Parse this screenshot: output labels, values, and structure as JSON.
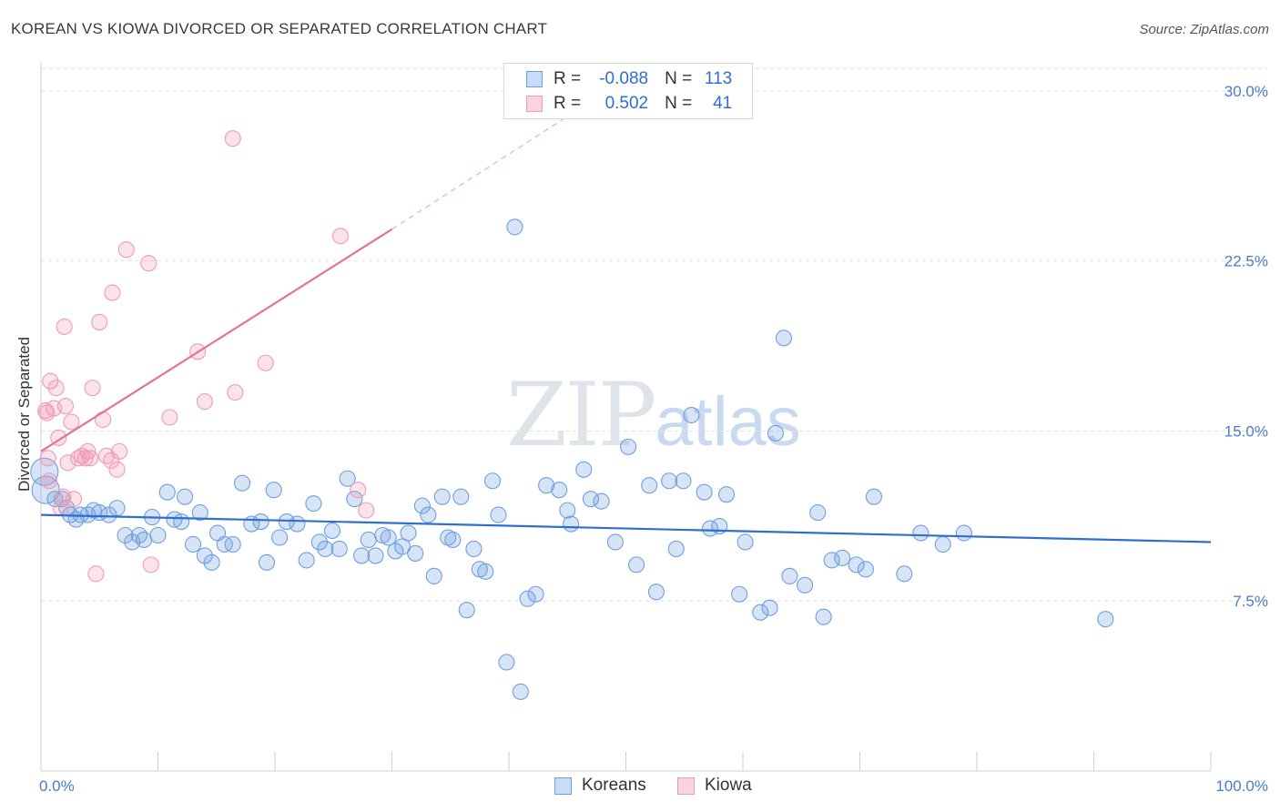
{
  "title": "KOREAN VS KIOWA DIVORCED OR SEPARATED CORRELATION CHART",
  "source": "Source: ZipAtlas.com",
  "watermark": {
    "zip": "ZIP",
    "atlas": "atlas"
  },
  "legend": {
    "rows": [
      {
        "r_label": "R =",
        "r_value": "-0.088",
        "n_label": "N =",
        "n_value": "113",
        "color": "#6f9fe0"
      },
      {
        "r_label": "R =",
        "r_value": "0.502",
        "n_label": "N =",
        "n_value": "41",
        "color": "#ef9bb5"
      }
    ],
    "bottom": [
      {
        "label": "Koreans"
      },
      {
        "label": "Kiowa"
      }
    ]
  },
  "chart_data": {
    "type": "scatter",
    "title": "KOREAN VS KIOWA DIVORCED OR SEPARATED CORRELATION CHART",
    "xlabel": "",
    "ylabel": "Divorced or Separated",
    "xlim": [
      0,
      100
    ],
    "ylim": [
      0,
      31
    ],
    "x_tick_labels": [
      "0.0%",
      "100.0%"
    ],
    "y_ticks": [
      7.5,
      15.0,
      22.5,
      30.0
    ],
    "y_tick_labels": [
      "7.5%",
      "15.0%",
      "22.5%",
      "30.0%"
    ],
    "series": [
      {
        "name": "Koreans",
        "color": "#6f9fe0",
        "trend": {
          "x": [
            0,
            100
          ],
          "y": [
            11.3,
            10.1
          ]
        },
        "points": [
          [
            0.3,
            13.2
          ],
          [
            0.4,
            12.4
          ],
          [
            1.2,
            12.0
          ],
          [
            1.8,
            12.0
          ],
          [
            2.2,
            11.6
          ],
          [
            2.5,
            11.3
          ],
          [
            3.0,
            11.1
          ],
          [
            3.4,
            11.3
          ],
          [
            4.0,
            11.3
          ],
          [
            4.5,
            11.5
          ],
          [
            5.0,
            11.4
          ],
          [
            5.8,
            11.3
          ],
          [
            6.5,
            11.6
          ],
          [
            7.2,
            10.4
          ],
          [
            7.8,
            10.1
          ],
          [
            8.4,
            10.4
          ],
          [
            8.8,
            10.2
          ],
          [
            9.5,
            11.2
          ],
          [
            10.0,
            10.4
          ],
          [
            10.8,
            12.3
          ],
          [
            11.4,
            11.1
          ],
          [
            12.0,
            11.0
          ],
          [
            12.3,
            12.1
          ],
          [
            13.0,
            10.0
          ],
          [
            13.6,
            11.4
          ],
          [
            14.0,
            9.5
          ],
          [
            14.6,
            9.2
          ],
          [
            15.1,
            10.5
          ],
          [
            15.7,
            10.0
          ],
          [
            16.4,
            10.0
          ],
          [
            17.2,
            12.7
          ],
          [
            18.0,
            10.9
          ],
          [
            18.8,
            11.0
          ],
          [
            19.3,
            9.2
          ],
          [
            19.9,
            12.4
          ],
          [
            20.4,
            10.3
          ],
          [
            21.0,
            11.0
          ],
          [
            21.9,
            10.9
          ],
          [
            22.7,
            9.3
          ],
          [
            23.3,
            11.8
          ],
          [
            23.8,
            10.1
          ],
          [
            24.3,
            9.8
          ],
          [
            24.9,
            10.6
          ],
          [
            25.5,
            9.8
          ],
          [
            26.2,
            12.9
          ],
          [
            26.8,
            12.0
          ],
          [
            27.4,
            9.5
          ],
          [
            28.0,
            10.2
          ],
          [
            28.6,
            9.5
          ],
          [
            29.2,
            10.4
          ],
          [
            29.7,
            10.3
          ],
          [
            30.3,
            9.7
          ],
          [
            30.9,
            9.9
          ],
          [
            31.4,
            10.5
          ],
          [
            32.0,
            9.6
          ],
          [
            32.6,
            11.7
          ],
          [
            33.1,
            11.3
          ],
          [
            33.6,
            8.6
          ],
          [
            34.3,
            12.1
          ],
          [
            34.8,
            10.3
          ],
          [
            35.2,
            10.2
          ],
          [
            35.9,
            12.1
          ],
          [
            36.4,
            7.1
          ],
          [
            37.0,
            9.8
          ],
          [
            37.5,
            8.9
          ],
          [
            38.0,
            8.8
          ],
          [
            38.6,
            12.8
          ],
          [
            39.1,
            11.3
          ],
          [
            39.8,
            4.8
          ],
          [
            40.5,
            24.0
          ],
          [
            41.0,
            3.5
          ],
          [
            41.6,
            7.6
          ],
          [
            42.3,
            7.8
          ],
          [
            43.2,
            12.6
          ],
          [
            44.3,
            12.4
          ],
          [
            45.0,
            11.5
          ],
          [
            45.3,
            10.9
          ],
          [
            46.4,
            13.3
          ],
          [
            47.0,
            12.0
          ],
          [
            47.9,
            11.9
          ],
          [
            49.1,
            10.1
          ],
          [
            50.2,
            14.3
          ],
          [
            50.9,
            9.1
          ],
          [
            52.0,
            12.6
          ],
          [
            52.6,
            7.9
          ],
          [
            53.7,
            12.8
          ],
          [
            54.3,
            9.8
          ],
          [
            54.9,
            12.8
          ],
          [
            55.6,
            15.7
          ],
          [
            56.7,
            12.3
          ],
          [
            57.2,
            10.7
          ],
          [
            58.0,
            10.8
          ],
          [
            58.6,
            12.2
          ],
          [
            59.7,
            7.8
          ],
          [
            60.2,
            10.1
          ],
          [
            61.5,
            7.0
          ],
          [
            62.3,
            7.2
          ],
          [
            62.8,
            14.9
          ],
          [
            63.5,
            19.1
          ],
          [
            64.0,
            8.6
          ],
          [
            65.3,
            8.2
          ],
          [
            66.4,
            11.4
          ],
          [
            66.9,
            6.8
          ],
          [
            67.6,
            9.3
          ],
          [
            68.5,
            9.4
          ],
          [
            69.7,
            9.1
          ],
          [
            70.5,
            8.9
          ],
          [
            71.2,
            12.1
          ],
          [
            73.8,
            8.7
          ],
          [
            75.2,
            10.5
          ],
          [
            77.1,
            10.0
          ],
          [
            78.9,
            10.5
          ],
          [
            91.0,
            6.7
          ]
        ]
      },
      {
        "name": "Kiowa",
        "color": "#ef9bb5",
        "trend": {
          "x": [
            0,
            30
          ],
          "y": [
            14.1,
            23.9
          ]
        },
        "trend_dashed": {
          "x": [
            30,
            46
          ],
          "y": [
            23.9,
            29.2
          ]
        },
        "points": [
          [
            0.4,
            15.9
          ],
          [
            0.5,
            15.8
          ],
          [
            0.6,
            13.8
          ],
          [
            0.7,
            12.8
          ],
          [
            0.8,
            17.2
          ],
          [
            1.1,
            16.0
          ],
          [
            1.3,
            16.9
          ],
          [
            1.5,
            14.7
          ],
          [
            1.7,
            11.6
          ],
          [
            1.9,
            12.1
          ],
          [
            2.0,
            19.6
          ],
          [
            2.1,
            16.1
          ],
          [
            2.3,
            13.6
          ],
          [
            2.6,
            15.4
          ],
          [
            2.8,
            12.0
          ],
          [
            3.2,
            13.8
          ],
          [
            3.5,
            13.9
          ],
          [
            3.8,
            13.8
          ],
          [
            4.0,
            14.1
          ],
          [
            4.2,
            13.8
          ],
          [
            4.4,
            16.9
          ],
          [
            4.7,
            8.7
          ],
          [
            5.0,
            19.8
          ],
          [
            5.3,
            15.5
          ],
          [
            5.6,
            13.9
          ],
          [
            6.0,
            13.7
          ],
          [
            6.1,
            21.1
          ],
          [
            6.5,
            13.3
          ],
          [
            6.7,
            14.1
          ],
          [
            7.3,
            23.0
          ],
          [
            9.2,
            22.4
          ],
          [
            9.4,
            9.1
          ],
          [
            11.0,
            15.6
          ],
          [
            13.4,
            18.5
          ],
          [
            14.0,
            16.3
          ],
          [
            16.4,
            27.9
          ],
          [
            16.6,
            16.7
          ],
          [
            19.2,
            18.0
          ],
          [
            25.6,
            23.6
          ],
          [
            27.1,
            12.4
          ],
          [
            27.8,
            11.5
          ]
        ]
      }
    ]
  }
}
